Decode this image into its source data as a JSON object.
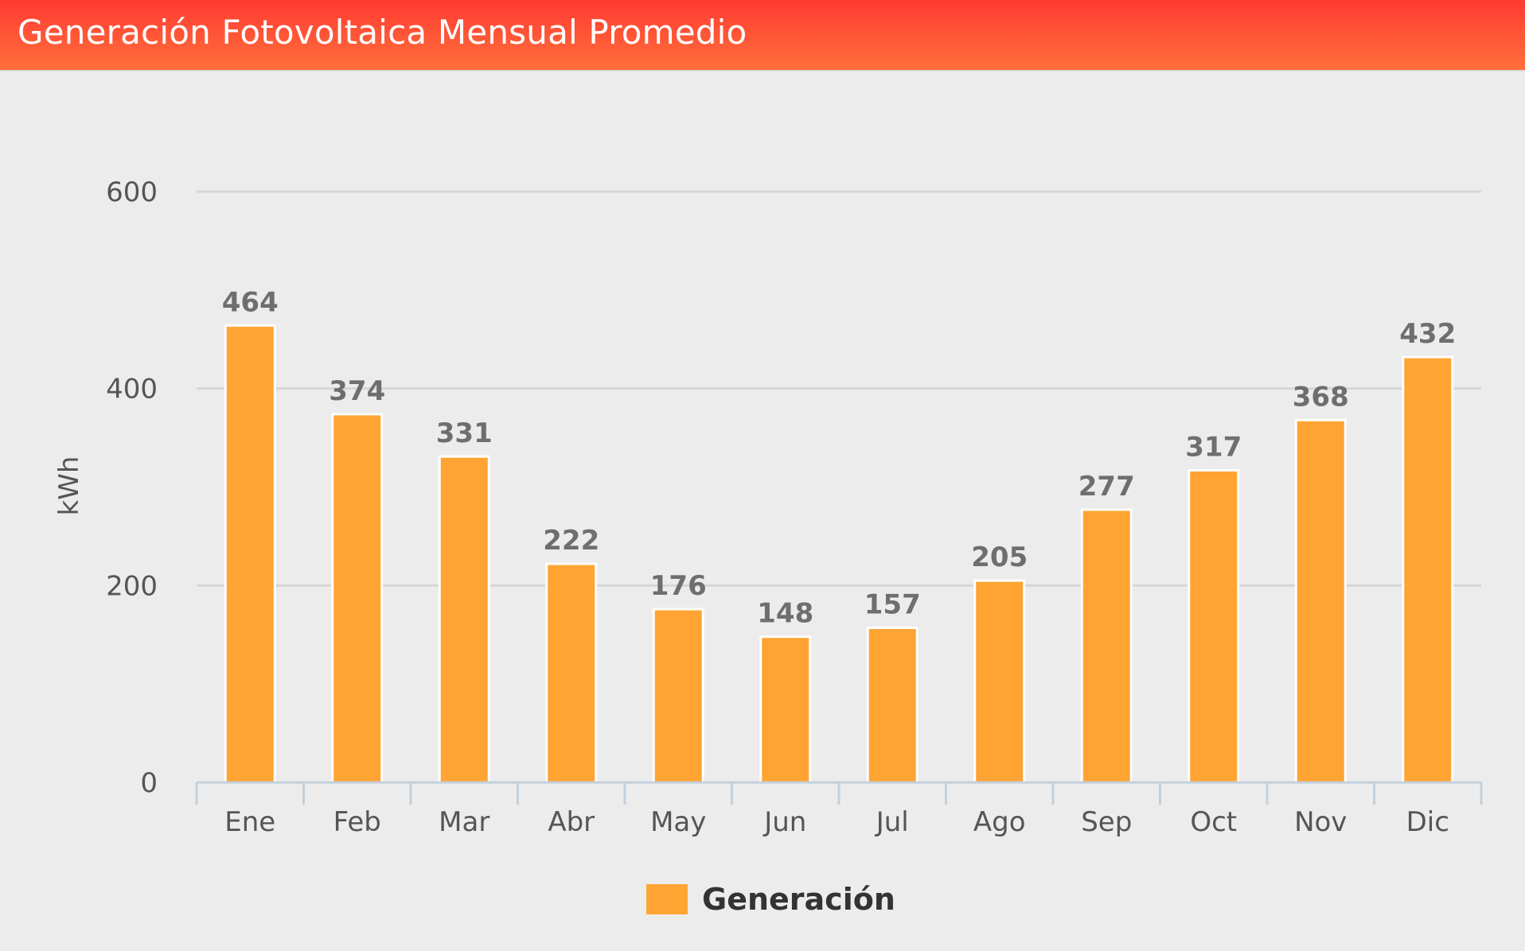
{
  "header": {
    "title": "Generación Fotovoltaica Mensual Promedio"
  },
  "colors": {
    "header_start": "#ff3b32",
    "header_end": "#ff6f3b",
    "bar": "#ffa433",
    "background": "#ececec"
  },
  "chart_data": {
    "type": "bar",
    "title": "Generación Fotovoltaica Mensual Promedio",
    "categories": [
      "Ene",
      "Feb",
      "Mar",
      "Abr",
      "May",
      "Jun",
      "Jul",
      "Ago",
      "Sep",
      "Oct",
      "Nov",
      "Dic"
    ],
    "series": [
      {
        "name": "Generación",
        "values": [
          464,
          374,
          331,
          222,
          176,
          148,
          157,
          205,
          277,
          317,
          368,
          432
        ]
      }
    ],
    "xlabel": "",
    "ylabel": "kWh",
    "ylim": [
      0,
      600
    ],
    "yticks": [
      0,
      200,
      400,
      600
    ],
    "grid": true,
    "data_labels": true,
    "legend_position": "bottom-center"
  }
}
